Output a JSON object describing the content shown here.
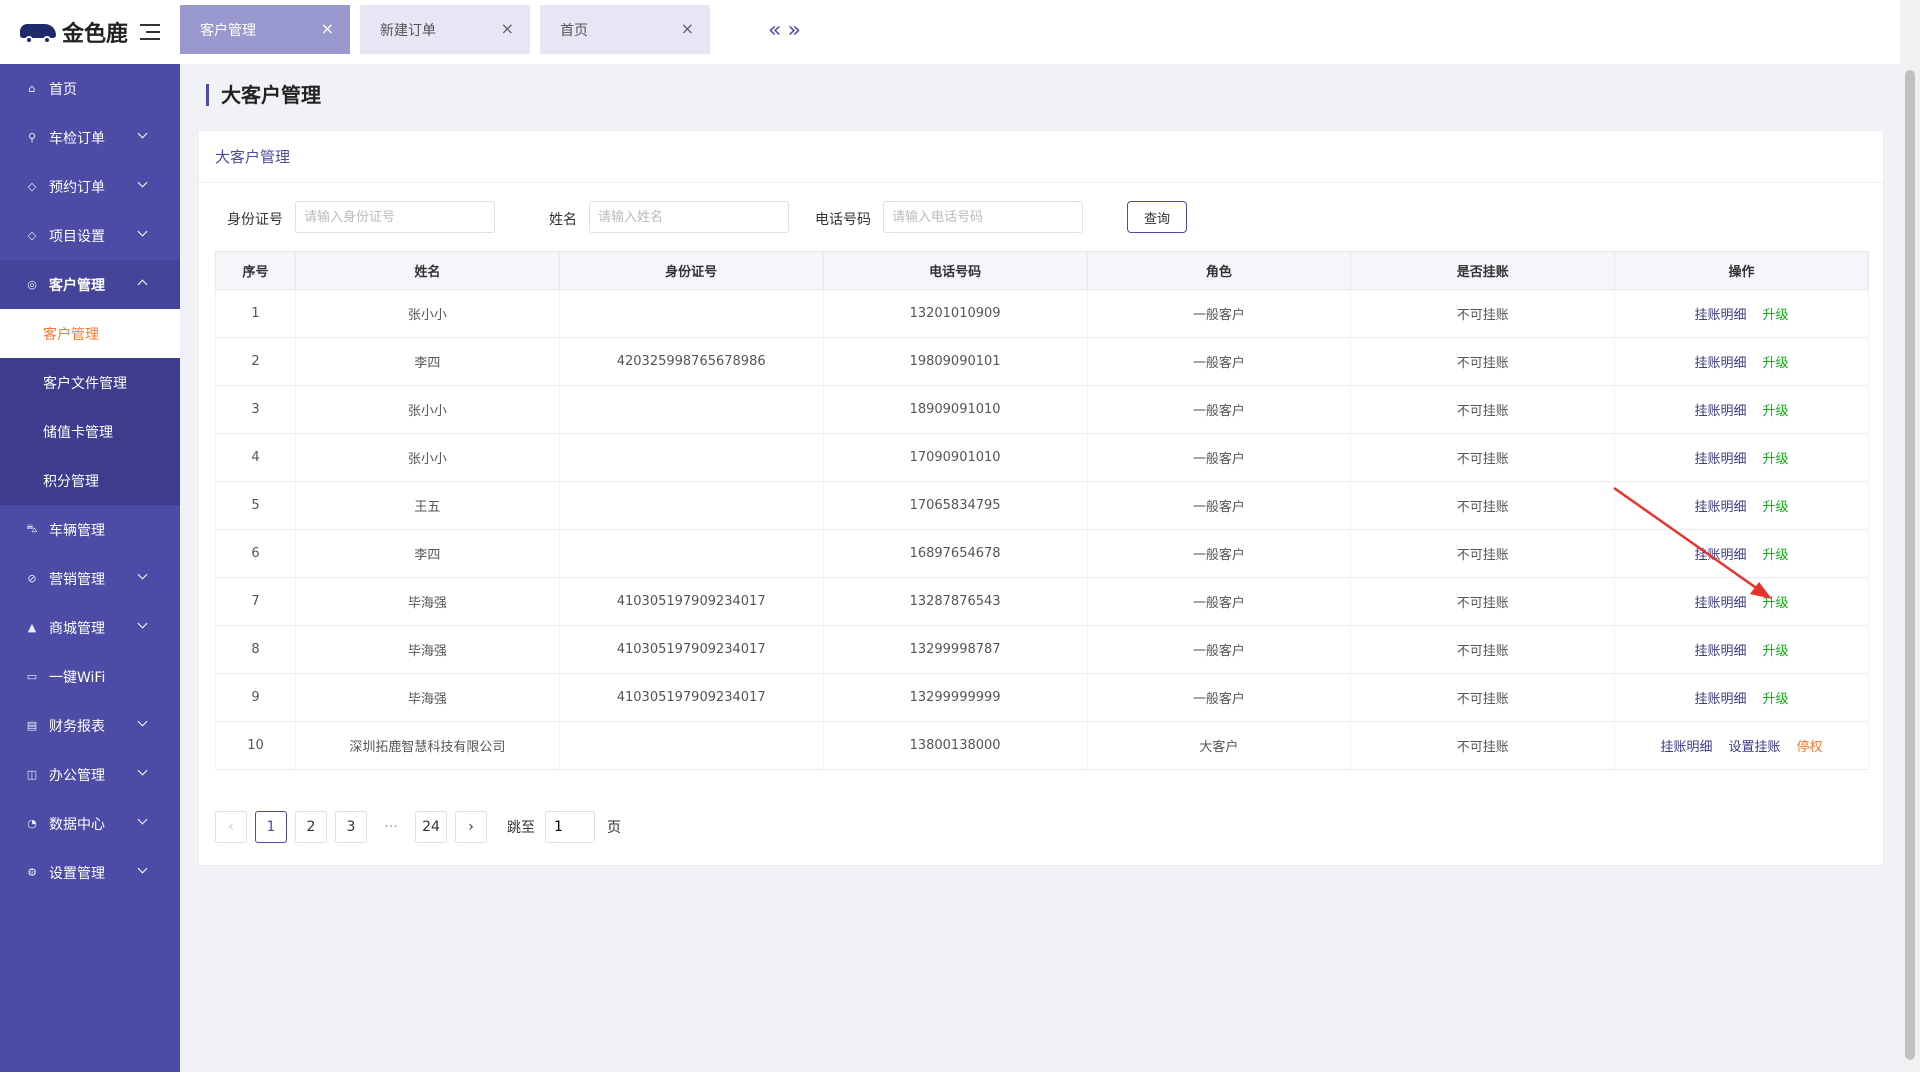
{
  "brand": {
    "name": "金色鹿"
  },
  "tabs": [
    {
      "label": "客户管理",
      "active": true
    },
    {
      "label": "新建订单",
      "active": false
    },
    {
      "label": "首页",
      "active": false
    }
  ],
  "sidebar": {
    "items": [
      {
        "label": "首页",
        "icon": "home-icon"
      },
      {
        "label": "车检订单",
        "icon": "search-icon"
      },
      {
        "label": "预约订单",
        "icon": "box-icon"
      },
      {
        "label": "项目设置",
        "icon": "box-icon"
      },
      {
        "label": "客户管理",
        "icon": "user-icon"
      },
      {
        "label": "车辆管理",
        "icon": "car-icon"
      },
      {
        "label": "营销管理",
        "icon": "tag-icon"
      },
      {
        "label": "商城管理",
        "icon": "shop-icon"
      },
      {
        "label": "一键WiFi",
        "icon": "wifi-icon"
      },
      {
        "label": "财务报表",
        "icon": "report-icon"
      },
      {
        "label": "办公管理",
        "icon": "briefcase-icon"
      },
      {
        "label": "数据中心",
        "icon": "chart-icon"
      },
      {
        "label": "设置管理",
        "icon": "gear-icon"
      }
    ],
    "sub_items": [
      "客户管理",
      "客户文件管理",
      "储值卡管理",
      "积分管理"
    ]
  },
  "page": {
    "title": "大客户管理",
    "card_title": "大客户管理"
  },
  "filters": {
    "id_label": "身份证号",
    "id_placeholder": "请输入身份证号",
    "name_label": "姓名",
    "name_placeholder": "请输入姓名",
    "phone_label": "电话号码",
    "phone_placeholder": "请输入电话号码",
    "query_label": "查询"
  },
  "table": {
    "headers": [
      "序号",
      "姓名",
      "身份证号",
      "电话号码",
      "角色",
      "是否挂账",
      "操作"
    ],
    "rows": [
      {
        "no": "1",
        "name": "张小小",
        "id": "",
        "phone": "13201010909",
        "role": "一般客户",
        "credit": "不可挂账"
      },
      {
        "no": "2",
        "name": "李四",
        "id": "420325998765678986",
        "phone": "19809090101",
        "role": "一般客户",
        "credit": "不可挂账"
      },
      {
        "no": "3",
        "name": "张小小",
        "id": "",
        "phone": "18909091010",
        "role": "一般客户",
        "credit": "不可挂账"
      },
      {
        "no": "4",
        "name": "张小小",
        "id": "",
        "phone": "17090901010",
        "role": "一般客户",
        "credit": "不可挂账"
      },
      {
        "no": "5",
        "name": "王五",
        "id": "",
        "phone": "17065834795",
        "role": "一般客户",
        "credit": "不可挂账"
      },
      {
        "no": "6",
        "name": "李四",
        "id": "",
        "phone": "16897654678",
        "role": "一般客户",
        "credit": "不可挂账"
      },
      {
        "no": "7",
        "name": "毕海强",
        "id": "410305197909234017",
        "phone": "13287876543",
        "role": "一般客户",
        "credit": "不可挂账"
      },
      {
        "no": "8",
        "name": "毕海强",
        "id": "410305197909234017",
        "phone": "13299998787",
        "role": "一般客户",
        "credit": "不可挂账"
      },
      {
        "no": "9",
        "name": "毕海强",
        "id": "410305197909234017",
        "phone": "13299999999",
        "role": "一般客户",
        "credit": "不可挂账"
      },
      {
        "no": "10",
        "name": "深圳拓鹿智慧科技有限公司",
        "id": "",
        "phone": "13800138000",
        "role": "大客户",
        "credit": "不可挂账"
      }
    ],
    "ops": {
      "detail": "挂账明细",
      "upgrade": "升级",
      "set_credit": "设置挂账",
      "suspend": "停权"
    }
  },
  "pagination": {
    "pages": [
      "1",
      "2",
      "3",
      "24"
    ],
    "current": "1",
    "ellipsis": "···",
    "jump_label": "跳至",
    "jump_value": "1",
    "unit": "页"
  },
  "colors": {
    "sidebar": "#4c4ba5",
    "active_sub": "#ff7a2e",
    "upgrade": "#1aad19",
    "suspend": "#f07b2c",
    "annotation_arrow": "#e8322c"
  }
}
